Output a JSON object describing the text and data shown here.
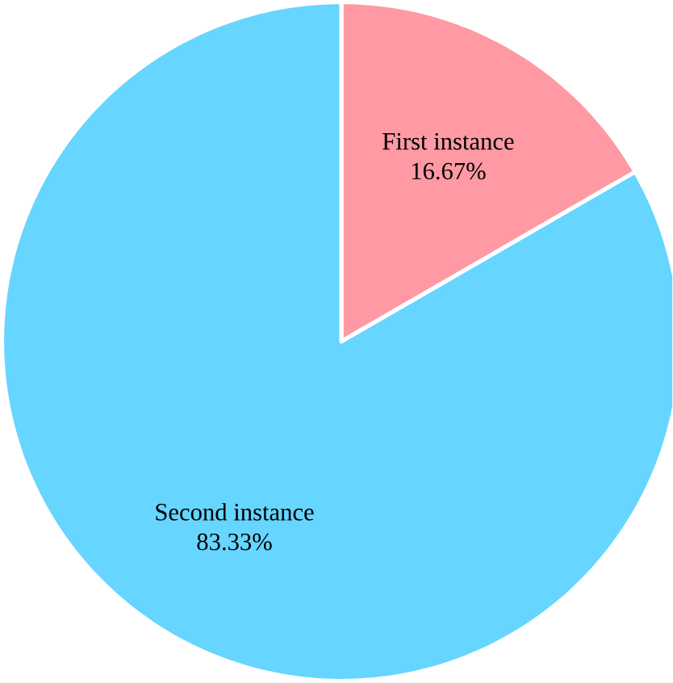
{
  "chart_data": {
    "type": "pie",
    "categories": [
      "First instance",
      "Second instance"
    ],
    "values": [
      16.67,
      83.33
    ],
    "colors": [
      "#ff99a4",
      "#66d5ff"
    ],
    "value_labels": [
      "16.67%",
      "83.33%"
    ]
  }
}
